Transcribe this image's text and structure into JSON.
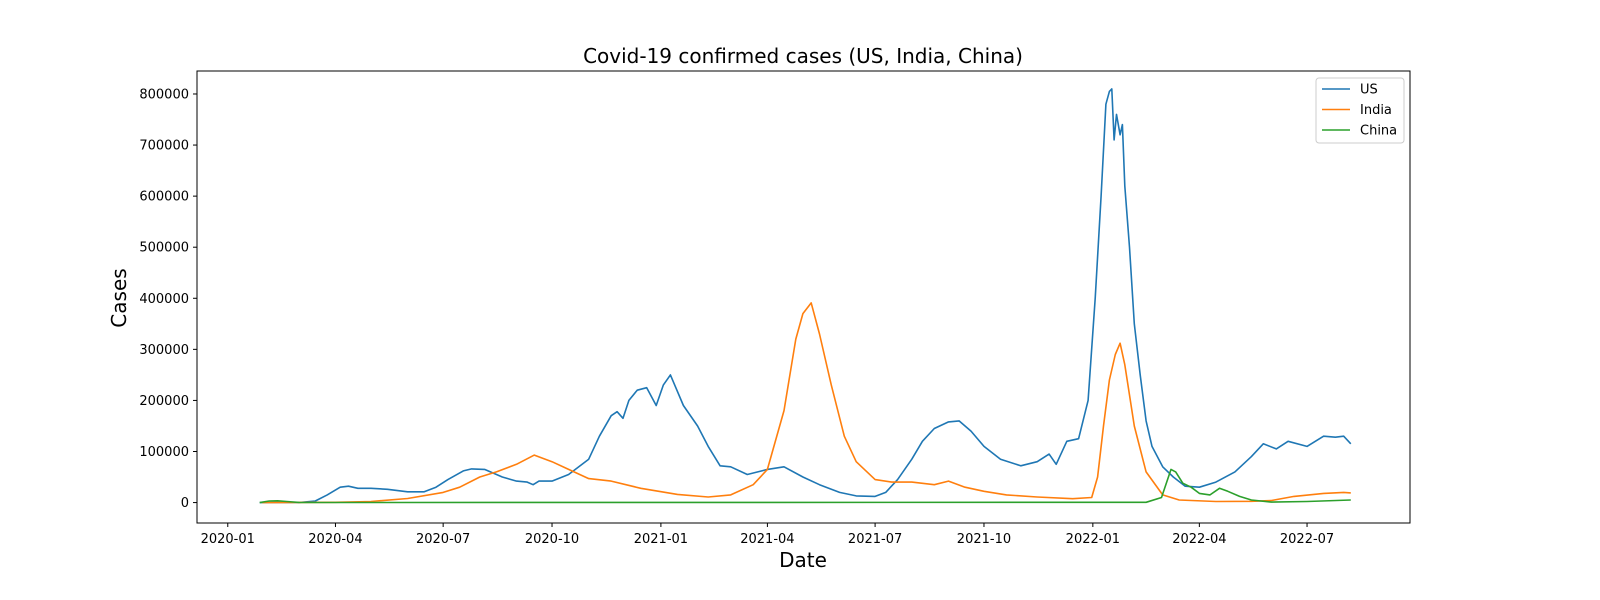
{
  "chart_data": {
    "type": "line",
    "title": "Covid-19 confirmed cases (US, India, China)",
    "xlabel": "Date",
    "ylabel": "Cases",
    "xlim": [
      "2019-12-06",
      "2022-09-26"
    ],
    "ylim": [
      -40000,
      845000
    ],
    "x_ticks": [
      "2020-01",
      "2020-04",
      "2020-07",
      "2020-10",
      "2021-01",
      "2021-04",
      "2021-07",
      "2021-10",
      "2022-01",
      "2022-04",
      "2022-07"
    ],
    "y_ticks": [
      0,
      100000,
      200000,
      300000,
      400000,
      500000,
      600000,
      700000,
      800000
    ],
    "y_tick_labels": [
      "0",
      "100000",
      "200000",
      "300000",
      "400000",
      "500000",
      "600000",
      "700000",
      "800000"
    ],
    "grid": false,
    "legend_position": "top-right",
    "series": [
      {
        "name": "US",
        "color": "#1f77b4",
        "points": [
          [
            "2020-01-28",
            0
          ],
          [
            "2020-03-01",
            100
          ],
          [
            "2020-03-15",
            3000
          ],
          [
            "2020-03-25",
            15000
          ],
          [
            "2020-04-05",
            30000
          ],
          [
            "2020-04-12",
            32000
          ],
          [
            "2020-04-20",
            28000
          ],
          [
            "2020-05-01",
            28000
          ],
          [
            "2020-05-15",
            26000
          ],
          [
            "2020-06-01",
            21000
          ],
          [
            "2020-06-15",
            21000
          ],
          [
            "2020-06-25",
            30000
          ],
          [
            "2020-07-05",
            45000
          ],
          [
            "2020-07-18",
            62000
          ],
          [
            "2020-07-25",
            66000
          ],
          [
            "2020-08-05",
            65000
          ],
          [
            "2020-08-20",
            50000
          ],
          [
            "2020-09-01",
            42000
          ],
          [
            "2020-09-10",
            40000
          ],
          [
            "2020-09-15",
            35000
          ],
          [
            "2020-09-20",
            42000
          ],
          [
            "2020-10-01",
            42000
          ],
          [
            "2020-10-15",
            55000
          ],
          [
            "2020-11-01",
            85000
          ],
          [
            "2020-11-10",
            130000
          ],
          [
            "2020-11-20",
            170000
          ],
          [
            "2020-11-25",
            178000
          ],
          [
            "2020-11-30",
            165000
          ],
          [
            "2020-12-05",
            200000
          ],
          [
            "2020-12-12",
            220000
          ],
          [
            "2020-12-20",
            225000
          ],
          [
            "2020-12-28",
            190000
          ],
          [
            "2021-01-03",
            230000
          ],
          [
            "2021-01-09",
            250000
          ],
          [
            "2021-01-20",
            190000
          ],
          [
            "2021-02-01",
            150000
          ],
          [
            "2021-02-10",
            110000
          ],
          [
            "2021-02-20",
            72000
          ],
          [
            "2021-03-01",
            70000
          ],
          [
            "2021-03-15",
            55000
          ],
          [
            "2021-04-01",
            65000
          ],
          [
            "2021-04-15",
            70000
          ],
          [
            "2021-05-01",
            50000
          ],
          [
            "2021-05-15",
            35000
          ],
          [
            "2021-06-01",
            20000
          ],
          [
            "2021-06-15",
            13000
          ],
          [
            "2021-07-01",
            12000
          ],
          [
            "2021-07-10",
            20000
          ],
          [
            "2021-07-20",
            45000
          ],
          [
            "2021-08-01",
            85000
          ],
          [
            "2021-08-10",
            120000
          ],
          [
            "2021-08-20",
            145000
          ],
          [
            "2021-09-01",
            158000
          ],
          [
            "2021-09-10",
            160000
          ],
          [
            "2021-09-20",
            140000
          ],
          [
            "2021-10-01",
            110000
          ],
          [
            "2021-10-15",
            85000
          ],
          [
            "2021-11-01",
            72000
          ],
          [
            "2021-11-15",
            80000
          ],
          [
            "2021-11-25",
            95000
          ],
          [
            "2021-12-01",
            75000
          ],
          [
            "2021-12-10",
            120000
          ],
          [
            "2021-12-20",
            125000
          ],
          [
            "2021-12-28",
            200000
          ],
          [
            "2022-01-03",
            400000
          ],
          [
            "2022-01-08",
            600000
          ],
          [
            "2022-01-12",
            780000
          ],
          [
            "2022-01-15",
            805000
          ],
          [
            "2022-01-17",
            810000
          ],
          [
            "2022-01-19",
            710000
          ],
          [
            "2022-01-21",
            760000
          ],
          [
            "2022-01-24",
            720000
          ],
          [
            "2022-01-26",
            740000
          ],
          [
            "2022-01-28",
            620000
          ],
          [
            "2022-02-01",
            500000
          ],
          [
            "2022-02-05",
            350000
          ],
          [
            "2022-02-10",
            250000
          ],
          [
            "2022-02-15",
            160000
          ],
          [
            "2022-02-20",
            110000
          ],
          [
            "2022-03-01",
            70000
          ],
          [
            "2022-03-10",
            50000
          ],
          [
            "2022-03-20",
            32000
          ],
          [
            "2022-04-01",
            30000
          ],
          [
            "2022-04-15",
            40000
          ],
          [
            "2022-05-01",
            60000
          ],
          [
            "2022-05-15",
            90000
          ],
          [
            "2022-05-25",
            115000
          ],
          [
            "2022-06-05",
            105000
          ],
          [
            "2022-06-15",
            120000
          ],
          [
            "2022-07-01",
            110000
          ],
          [
            "2022-07-15",
            130000
          ],
          [
            "2022-07-25",
            128000
          ],
          [
            "2022-08-01",
            130000
          ],
          [
            "2022-08-07",
            115000
          ]
        ]
      },
      {
        "name": "India",
        "color": "#ff7f0e",
        "points": [
          [
            "2020-01-30",
            0
          ],
          [
            "2020-04-01",
            500
          ],
          [
            "2020-05-01",
            2000
          ],
          [
            "2020-06-01",
            8000
          ],
          [
            "2020-07-01",
            20000
          ],
          [
            "2020-07-15",
            30000
          ],
          [
            "2020-08-01",
            50000
          ],
          [
            "2020-08-15",
            60000
          ],
          [
            "2020-09-01",
            75000
          ],
          [
            "2020-09-16",
            93000
          ],
          [
            "2020-10-01",
            80000
          ],
          [
            "2020-10-15",
            65000
          ],
          [
            "2020-11-01",
            47000
          ],
          [
            "2020-11-20",
            42000
          ],
          [
            "2020-12-15",
            28000
          ],
          [
            "2021-01-15",
            16000
          ],
          [
            "2021-02-10",
            11000
          ],
          [
            "2021-03-01",
            15000
          ],
          [
            "2021-03-20",
            35000
          ],
          [
            "2021-04-01",
            65000
          ],
          [
            "2021-04-15",
            180000
          ],
          [
            "2021-04-25",
            320000
          ],
          [
            "2021-05-01",
            370000
          ],
          [
            "2021-05-08",
            391000
          ],
          [
            "2021-05-15",
            330000
          ],
          [
            "2021-05-25",
            230000
          ],
          [
            "2021-06-05",
            130000
          ],
          [
            "2021-06-15",
            80000
          ],
          [
            "2021-07-01",
            45000
          ],
          [
            "2021-07-15",
            40000
          ],
          [
            "2021-08-01",
            40000
          ],
          [
            "2021-08-20",
            35000
          ],
          [
            "2021-09-01",
            42000
          ],
          [
            "2021-09-15",
            30000
          ],
          [
            "2021-10-01",
            22000
          ],
          [
            "2021-10-20",
            15000
          ],
          [
            "2021-11-15",
            11000
          ],
          [
            "2021-12-15",
            7500
          ],
          [
            "2021-12-31",
            10000
          ],
          [
            "2022-01-05",
            50000
          ],
          [
            "2022-01-10",
            150000
          ],
          [
            "2022-01-15",
            240000
          ],
          [
            "2022-01-20",
            290000
          ],
          [
            "2022-01-24",
            312000
          ],
          [
            "2022-01-28",
            270000
          ],
          [
            "2022-02-05",
            150000
          ],
          [
            "2022-02-15",
            60000
          ],
          [
            "2022-03-01",
            15000
          ],
          [
            "2022-03-15",
            5000
          ],
          [
            "2022-04-15",
            2000
          ],
          [
            "2022-05-15",
            2500
          ],
          [
            "2022-06-01",
            4000
          ],
          [
            "2022-06-20",
            12000
          ],
          [
            "2022-07-15",
            18000
          ],
          [
            "2022-08-01",
            20000
          ],
          [
            "2022-08-07",
            19000
          ]
        ]
      },
      {
        "name": "China",
        "color": "#2ca02c",
        "points": [
          [
            "2020-01-28",
            0
          ],
          [
            "2020-02-05",
            3000
          ],
          [
            "2020-02-12",
            3500
          ],
          [
            "2020-02-20",
            2000
          ],
          [
            "2020-03-01",
            300
          ],
          [
            "2020-04-01",
            100
          ],
          [
            "2022-02-15",
            500
          ],
          [
            "2022-02-28",
            10000
          ],
          [
            "2022-03-08",
            65000
          ],
          [
            "2022-03-12",
            60000
          ],
          [
            "2022-03-18",
            38000
          ],
          [
            "2022-03-25",
            30000
          ],
          [
            "2022-04-01",
            18000
          ],
          [
            "2022-04-10",
            15000
          ],
          [
            "2022-04-18",
            28000
          ],
          [
            "2022-04-25",
            22000
          ],
          [
            "2022-05-05",
            12000
          ],
          [
            "2022-05-15",
            5000
          ],
          [
            "2022-06-01",
            1000
          ],
          [
            "2022-07-01",
            2000
          ],
          [
            "2022-08-07",
            5000
          ]
        ]
      }
    ]
  }
}
